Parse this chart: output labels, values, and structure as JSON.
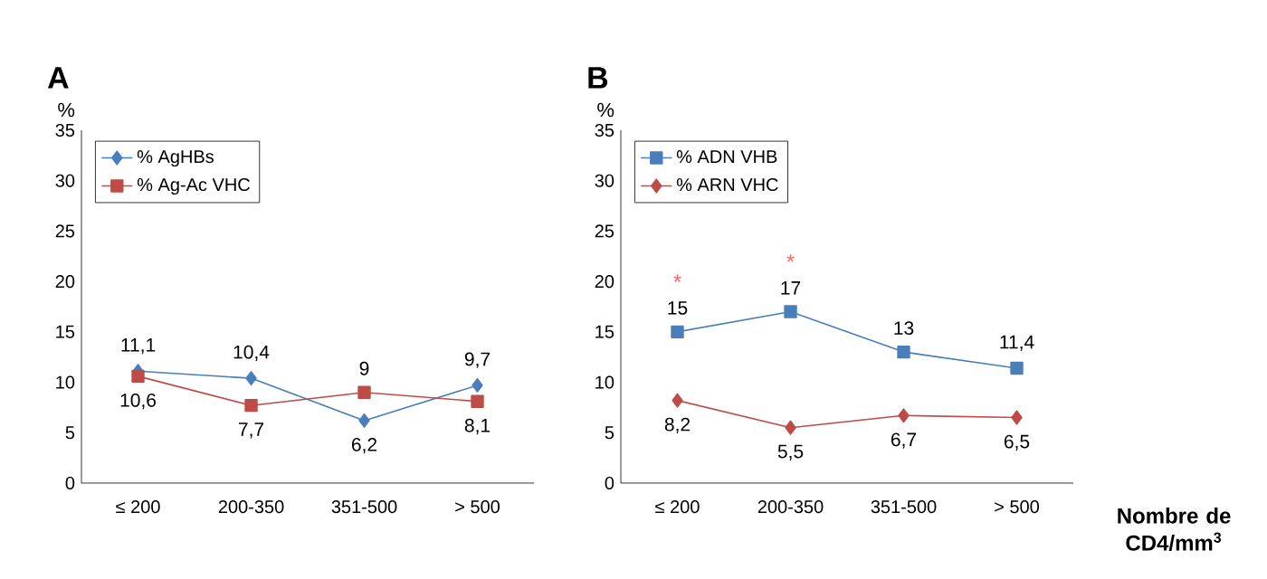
{
  "chart_data": [
    {
      "type": "line",
      "title": "A",
      "ylabel": "%",
      "categories": [
        "≤ 200",
        "200-350",
        "351-500",
        "> 500"
      ],
      "ylim": [
        0,
        35
      ],
      "yticks": [
        0,
        5,
        10,
        15,
        20,
        25,
        30,
        35
      ],
      "grid": false,
      "legend": "top left",
      "series": [
        {
          "name": "% AgHBs",
          "color": "#4a7ebb",
          "marker": "diamond",
          "values": [
            11.1,
            10.4,
            6.2,
            9.7
          ],
          "value_labels": [
            "11,1",
            "10,4",
            "6,2",
            "9,7"
          ]
        },
        {
          "name": "% Ag-Ac VHC",
          "color": "#be4b48",
          "marker": "square",
          "values": [
            10.6,
            7.7,
            9,
            8.1
          ],
          "value_labels": [
            "10,6",
            "7,7",
            "9",
            "8,1"
          ]
        }
      ]
    },
    {
      "type": "line",
      "title": "B",
      "ylabel": "%",
      "xlabel": "Nombre de CD4/mm$^{3}$",
      "categories": [
        "≤ 200",
        "200-350",
        "351-500",
        "> 500"
      ],
      "ylim": [
        0,
        35
      ],
      "yticks": [
        0,
        5,
        10,
        15,
        20,
        25,
        30,
        35
      ],
      "grid": false,
      "legend": "top left",
      "annotations": [
        "*",
        "*"
      ],
      "series": [
        {
          "name": "% ADN VHB",
          "color": "#4a7ebb",
          "marker": "square",
          "values": [
            15,
            17,
            13,
            11.4
          ],
          "value_labels": [
            "15",
            "17",
            "13",
            "11,4"
          ]
        },
        {
          "name": "% ARN VHC",
          "color": "#be4b48",
          "marker": "diamond",
          "values": [
            8.2,
            5.5,
            6.7,
            6.5
          ],
          "value_labels": [
            "8,2",
            "5,5",
            "6,7",
            "6,5"
          ]
        }
      ]
    }
  ]
}
